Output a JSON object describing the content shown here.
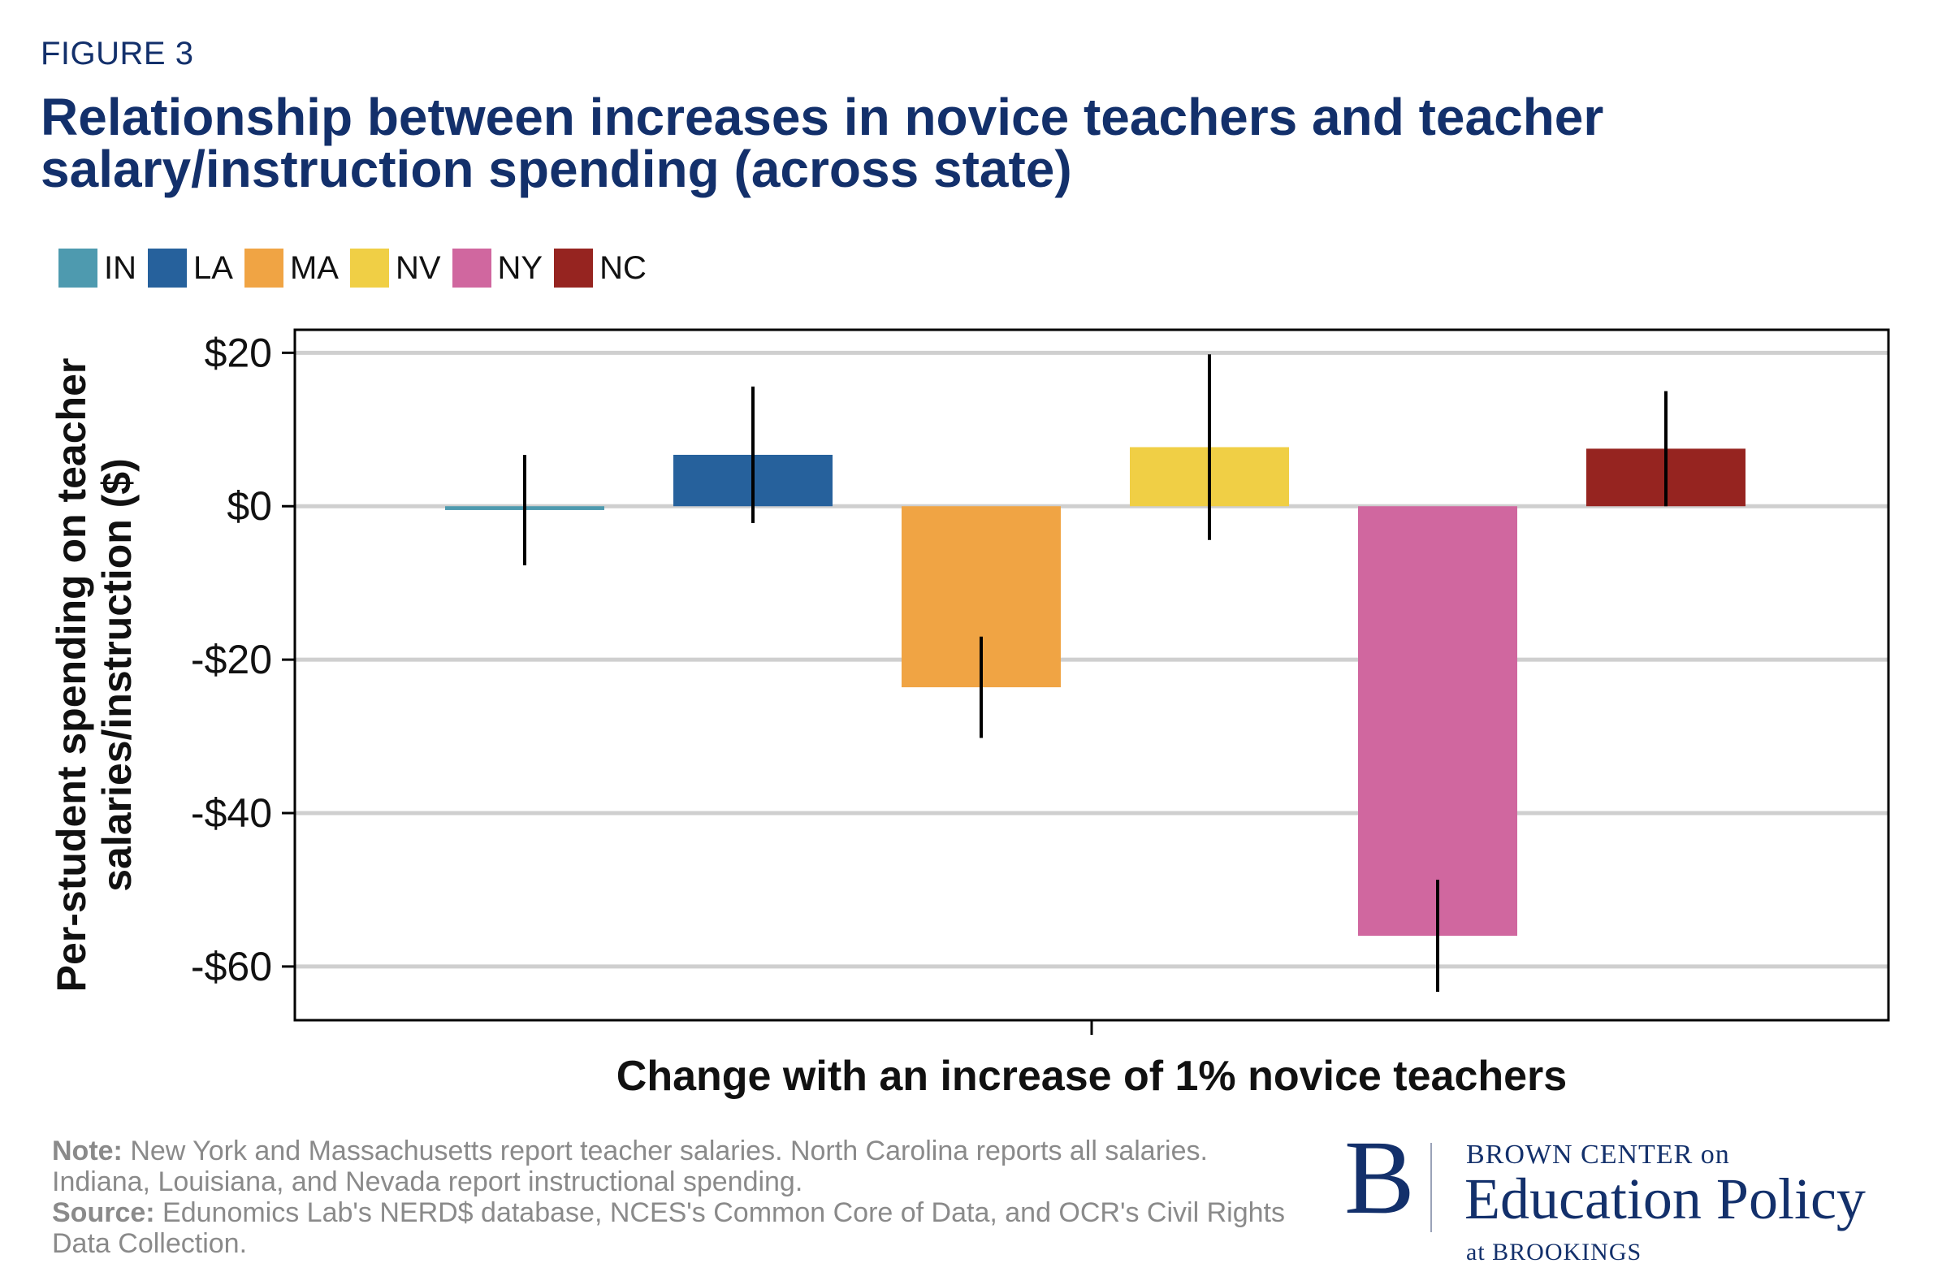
{
  "figure_label": "FIGURE 3",
  "title": "Relationship between increases in novice teachers and teacher salary/instruction spending (across state)",
  "note_label": "Note:",
  "note_text": " New York and Massachusetts report teacher salaries. North Carolina reports all salaries. Indiana, Louisiana, and Nevada report instructional spending.",
  "source_label": "Source:",
  "source_text": " Edunomics Lab's NERD$ database, NCES's Common Core of Data, and OCR's Civil Rights Data Collection.",
  "brand": {
    "letter": "B",
    "top": "BROWN CENTER on",
    "main": "Education Policy",
    "bottom": "at BROOKINGS"
  },
  "chart_data": {
    "type": "bar",
    "xlabel": "Change with an increase of 1% novice teachers",
    "ylabel_lines": [
      "Per-student spending on teacher",
      "salaries/instruction ($)"
    ],
    "ylim": [
      -67,
      23
    ],
    "yticks": [
      20,
      0,
      -20,
      -40,
      -60
    ],
    "ytick_labels": [
      "$20",
      "$0",
      "-$20",
      "-$40",
      "-$60"
    ],
    "grid": true,
    "legend_position": "top-left",
    "series": [
      {
        "name": "IN",
        "value": -0.5,
        "ci": [
          -7.7,
          6.7
        ],
        "color": "#4e9aaf"
      },
      {
        "name": "LA",
        "value": 6.7,
        "ci": [
          -2.2,
          15.6
        ],
        "color": "#26619c"
      },
      {
        "name": "MA",
        "value": -23.6,
        "ci": [
          -30.2,
          -17.0
        ],
        "color": "#f0a444"
      },
      {
        "name": "NV",
        "value": 7.7,
        "ci": [
          -4.4,
          19.8
        ],
        "color": "#f0cf45"
      },
      {
        "name": "NY",
        "value": -56.0,
        "ci": [
          -63.3,
          -48.7
        ],
        "color": "#d0679f"
      },
      {
        "name": "NC",
        "value": 7.5,
        "ci": [
          0.0,
          15.0
        ],
        "color": "#962420"
      }
    ]
  }
}
